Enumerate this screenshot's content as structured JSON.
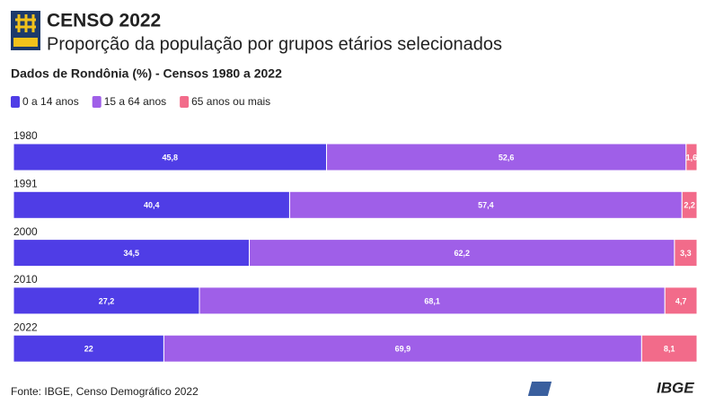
{
  "chart_data": {
    "type": "stacked-bar",
    "title": "CENSO 2022",
    "subtitle": "Proporção da população por grupos etários selecionados",
    "heading": "Dados de Rondônia (%) - Censos 1980 a 2022",
    "categories": [
      "1980",
      "1991",
      "2000",
      "2010",
      "2022"
    ],
    "series": [
      {
        "name": "0 a 14 anos",
        "color": "#4f3de6",
        "values": [
          45.8,
          40.4,
          34.5,
          27.2,
          22
        ],
        "value_labels": [
          "45,8",
          "40,4",
          "34,5",
          "27,2",
          "22"
        ]
      },
      {
        "name": "15 a 64 anos",
        "color": "#9f5fe8",
        "values": [
          52.6,
          57.4,
          62.2,
          68.1,
          69.9
        ],
        "value_labels": [
          "52,6",
          "57,4",
          "62,2",
          "68,1",
          "69,9"
        ]
      },
      {
        "name": "65 anos ou mais",
        "color": "#f26b8a",
        "values": [
          1.6,
          2.2,
          3.3,
          4.7,
          8.1
        ],
        "value_labels": [
          "1,6",
          "2,2",
          "3,3",
          "4,7",
          "8,1"
        ]
      }
    ],
    "xlim": [
      0,
      100
    ],
    "source": "Fonte: IBGE, Censo Demográfico 2022",
    "brand": "IBGE"
  }
}
